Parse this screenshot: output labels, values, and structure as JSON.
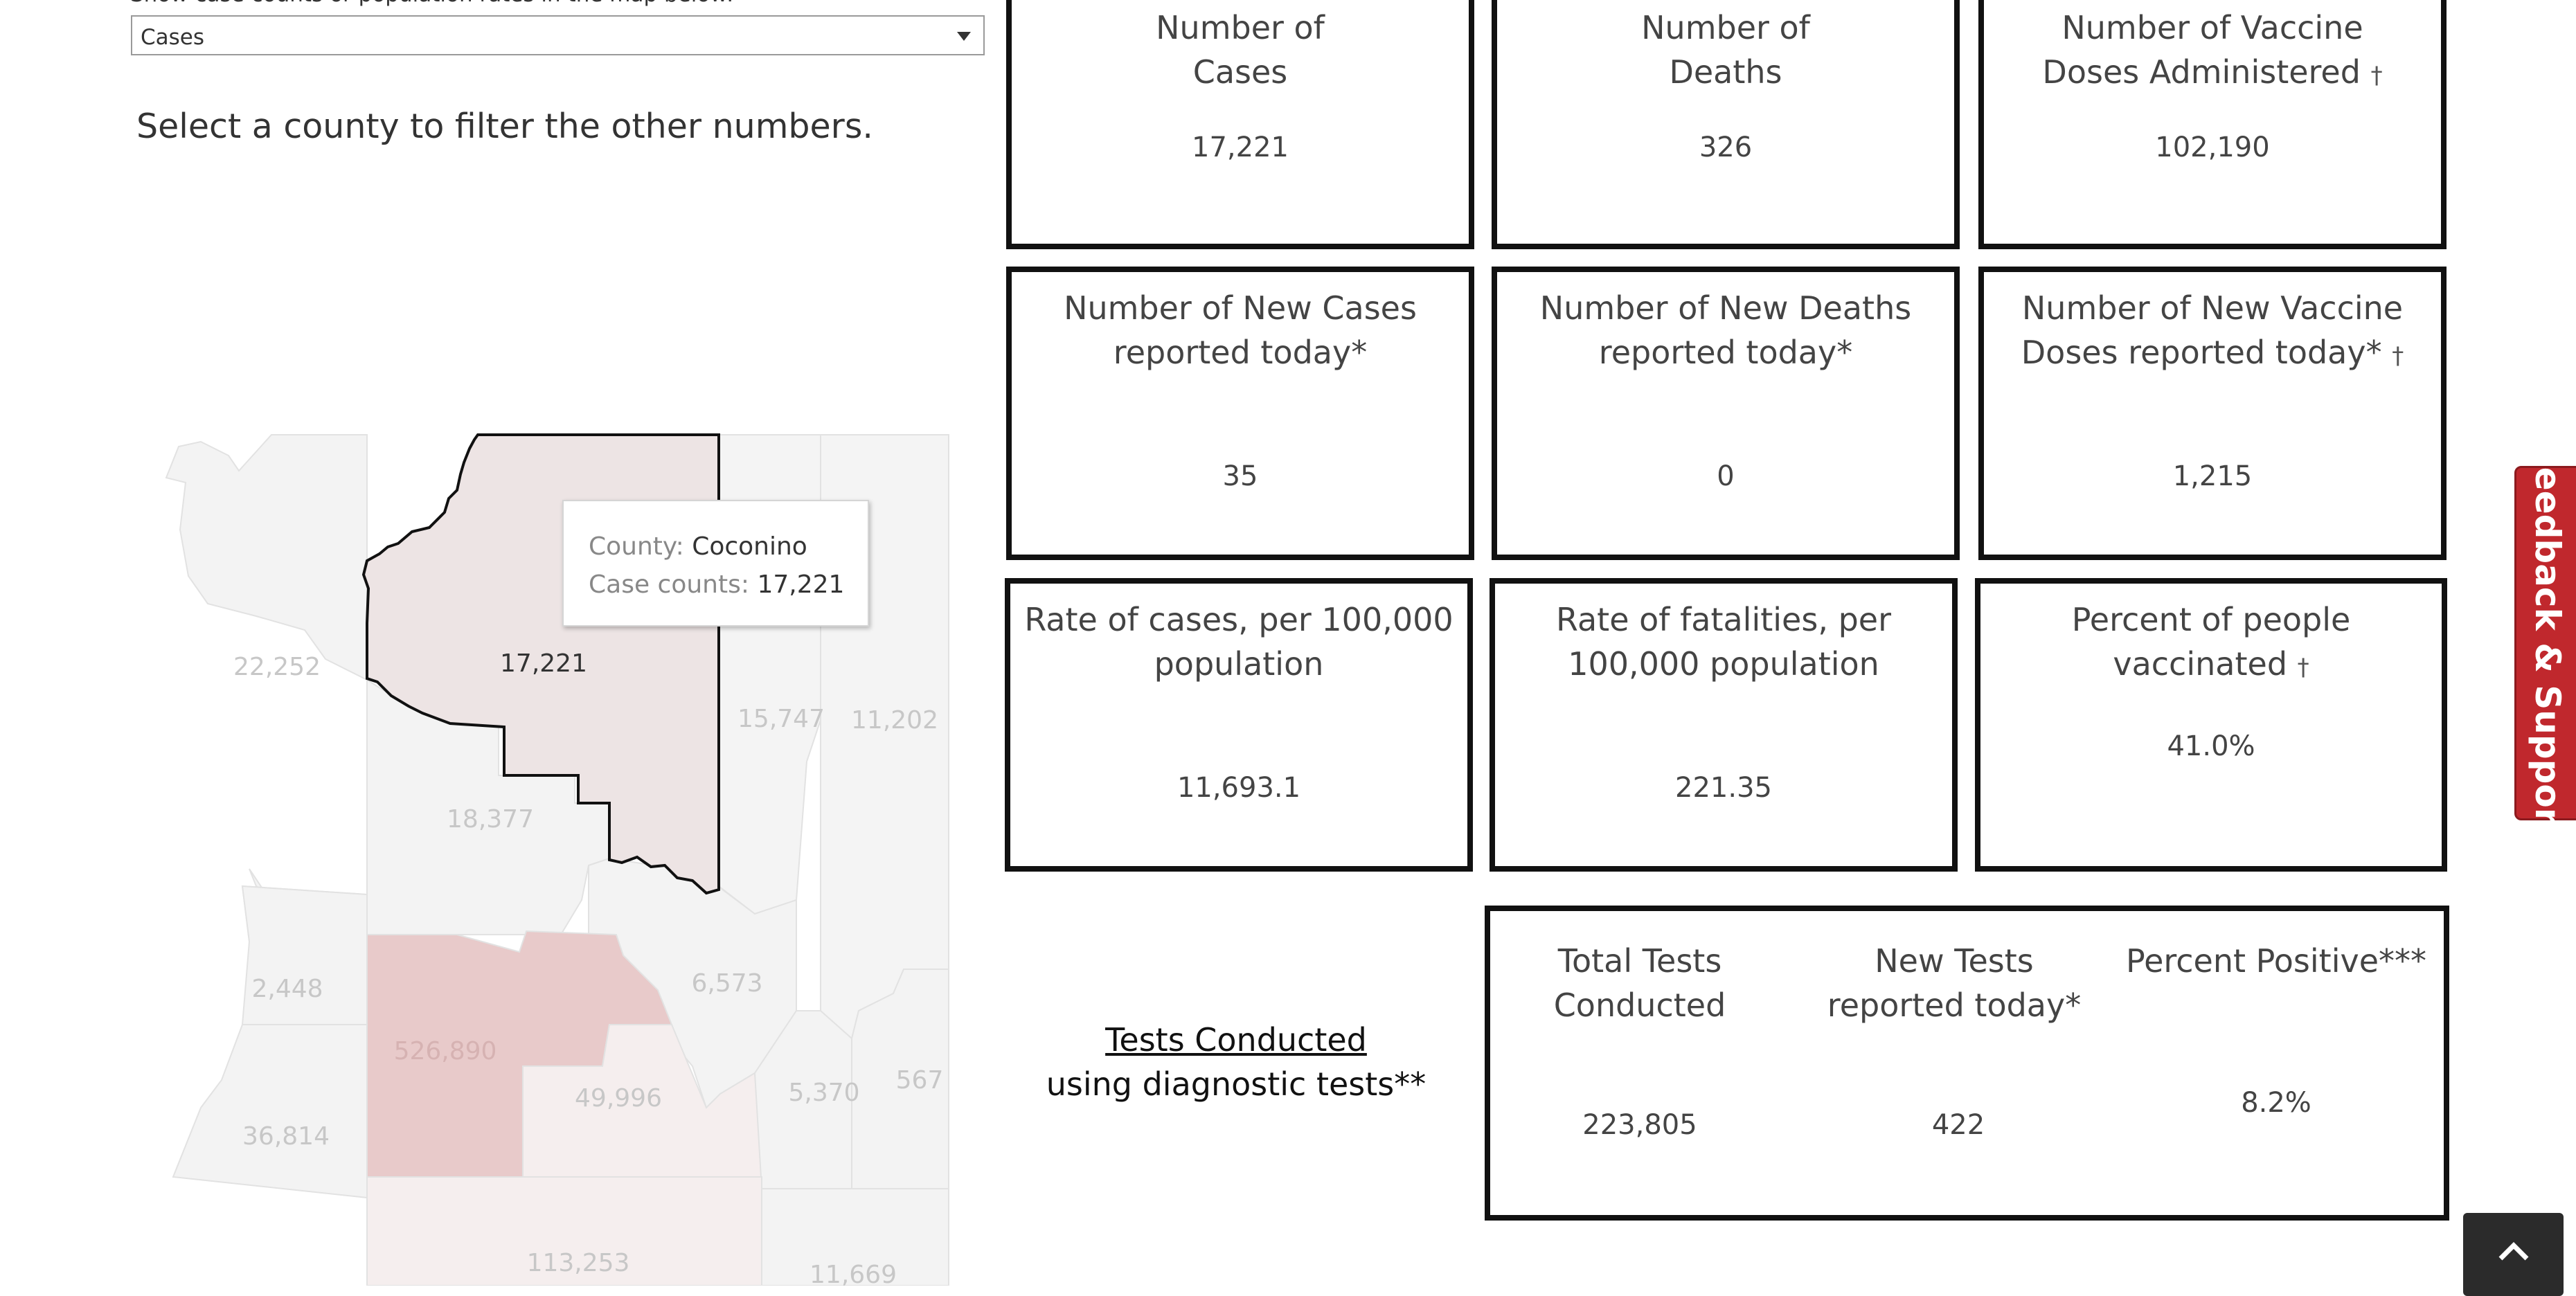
{
  "filter": {
    "label": "Show case counts or population rates in the map below:",
    "selected": "Cases"
  },
  "instruction": "Select a county to filter the other numbers.",
  "map": {
    "county_labels": [
      "22,252",
      "17,221",
      "15,747",
      "11,202",
      "18,377",
      "2,448",
      "6,573",
      "526,890",
      "49,996",
      "5,370",
      "567",
      "36,814",
      "113,253",
      "11,669"
    ],
    "colors": {
      "selected_fill": "#ede4e4",
      "highlight_fill": "#e8caca",
      "base_fill": "#f3f3f3",
      "mid_fill": "#f5eeee"
    }
  },
  "tooltip": {
    "county_key": "County:",
    "county_value": "Coconino",
    "cases_key": "Case counts:",
    "cases_value": "17,221"
  },
  "cards": {
    "cases": {
      "title_line1": "Number of",
      "title_line2": "Cases",
      "value": "17,221"
    },
    "deaths": {
      "title_line1": "Number of",
      "title_line2": "Deaths",
      "value": "326"
    },
    "vaccines": {
      "title_line1": "Number of Vaccine",
      "title_line2": "Doses Administered",
      "dagger": "†",
      "value": "102,190"
    },
    "new_cases": {
      "title_line1": "Number of New Cases",
      "title_line2": "reported today*",
      "value": "35"
    },
    "new_deaths": {
      "title_line1": "Number of New Deaths",
      "title_line2": "reported today*",
      "value": "0"
    },
    "new_vaccines": {
      "title_line1": "Number of New Vaccine",
      "title_line2": "Doses reported today*",
      "dagger": "†",
      "value": "1,215"
    },
    "case_rate": {
      "title_line1": "Rate of cases, per 100,000",
      "title_line2": "population",
      "value": "11,693.1"
    },
    "fatality_rate": {
      "title_line1": "Rate of fatalities, per",
      "title_line2": "100,000 population",
      "value": "221.35"
    },
    "vaccinated": {
      "title_line1": "Percent of people vaccinated",
      "dagger": "†",
      "value": "41.0%"
    }
  },
  "tests": {
    "link_label": "Tests Conducted",
    "subtitle": "using diagnostic tests**",
    "total": {
      "line1": "Total Tests",
      "line2": "Conducted",
      "value": "223,805"
    },
    "new": {
      "line1": "New Tests",
      "line2": "reported today*",
      "value": "422"
    },
    "positive": {
      "line1": "Percent Positive***",
      "value": "8.2%"
    }
  },
  "feedback": {
    "label": "Feedback & Support",
    "color": "#c0282d"
  },
  "back_to_top": {
    "icon": "chevron-up-icon"
  }
}
